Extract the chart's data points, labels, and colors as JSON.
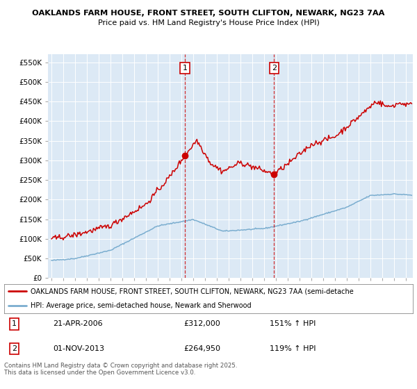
{
  "title1": "OAKLANDS FARM HOUSE, FRONT STREET, SOUTH CLIFTON, NEWARK, NG23 7AA",
  "title2": "Price paid vs. HM Land Registry's House Price Index (HPI)",
  "ylim": [
    0,
    570000
  ],
  "yticks": [
    0,
    50000,
    100000,
    150000,
    200000,
    250000,
    300000,
    350000,
    400000,
    450000,
    500000,
    550000
  ],
  "ytick_labels": [
    "£0",
    "£50K",
    "£100K",
    "£150K",
    "£200K",
    "£250K",
    "£300K",
    "£350K",
    "£400K",
    "£450K",
    "£500K",
    "£550K"
  ],
  "xlim_start": 1994.7,
  "xlim_end": 2025.6,
  "bg_color": "#dce9f5",
  "red_line_color": "#cc0000",
  "blue_line_color": "#7aadcf",
  "marker1_x": 2006.3,
  "marker1_y": 312000,
  "marker1_label": "1",
  "marker2_x": 2013.84,
  "marker2_y": 264950,
  "marker2_label": "2",
  "legend_label_red": "OAKLANDS FARM HOUSE, FRONT STREET, SOUTH CLIFTON, NEWARK, NG23 7AA (semi-detache",
  "legend_label_blue": "HPI: Average price, semi-detached house, Newark and Sherwood",
  "purchase1_date": "21-APR-2006",
  "purchase1_price": "£312,000",
  "purchase1_hpi": "151% ↑ HPI",
  "purchase2_date": "01-NOV-2013",
  "purchase2_price": "£264,950",
  "purchase2_hpi": "119% ↑ HPI",
  "footer": "Contains HM Land Registry data © Crown copyright and database right 2025.\nThis data is licensed under the Open Government Licence v3.0."
}
